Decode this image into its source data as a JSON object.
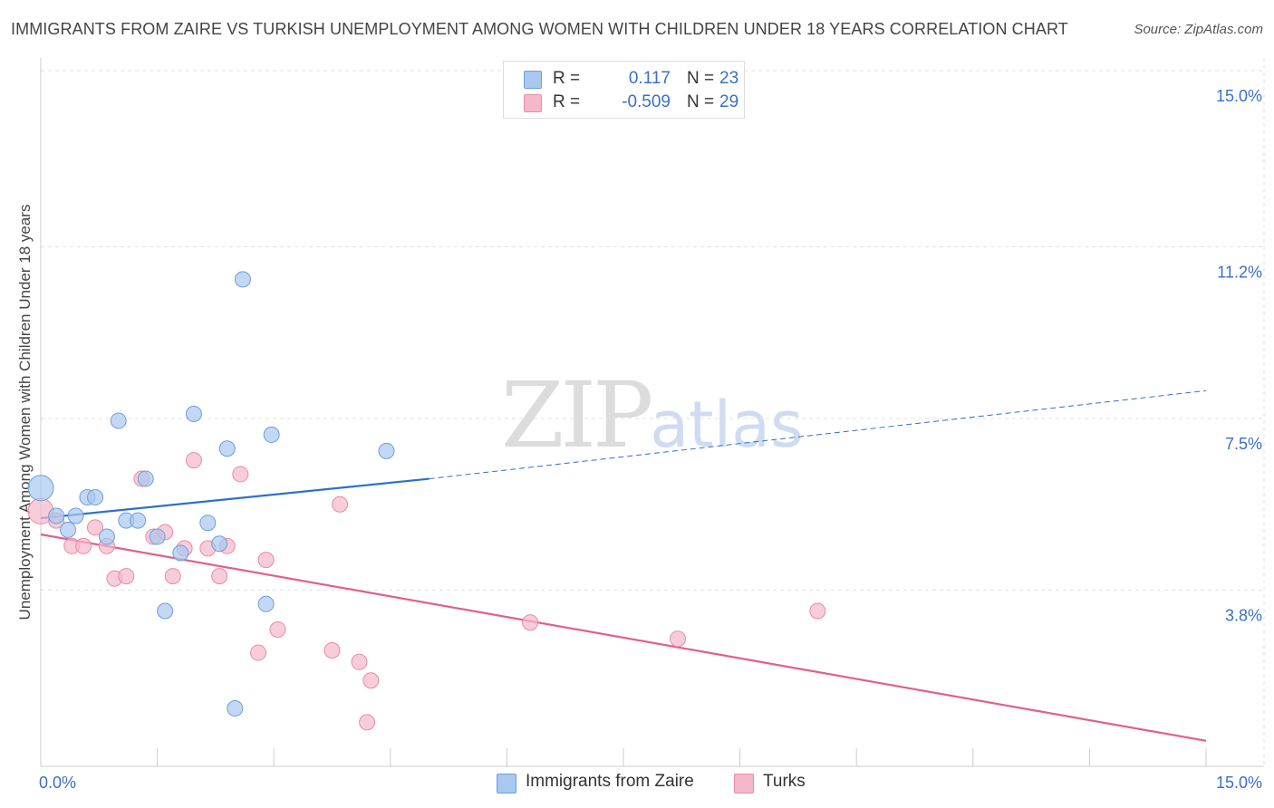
{
  "title": "IMMIGRANTS FROM ZAIRE VS TURKISH UNEMPLOYMENT AMONG WOMEN WITH CHILDREN UNDER 18 YEARS CORRELATION CHART",
  "source": "Source: ZipAtlas.com",
  "watermark": {
    "zip": "ZIP",
    "atlas": "atlas"
  },
  "legend": {
    "rows": [
      {
        "r_label": "R =",
        "r_value": "0.117",
        "n_label": "N =",
        "n_value": "23",
        "color": "#a9c8f0"
      },
      {
        "r_label": "R =",
        "r_value": "-0.509",
        "n_label": "N =",
        "n_value": "29",
        "color": "#f5b8cb"
      }
    ]
  },
  "bottom_legend": [
    {
      "label": "Immigrants from Zaire",
      "color": "#a9c8f0"
    },
    {
      "label": "Turks",
      "color": "#f5b8cb"
    }
  ],
  "chart_data": {
    "type": "scatter",
    "title": "IMMIGRANTS FROM ZAIRE VS TURKISH UNEMPLOYMENT AMONG WOMEN WITH CHILDREN UNDER 18 YEARS CORRELATION CHART",
    "xlabel": "",
    "ylabel": "Unemployment Among Women with Children Under 18 years",
    "xlim": [
      0,
      15
    ],
    "ylim": [
      0,
      15.5
    ],
    "x_tick_labels": [
      "0.0%",
      "15.0%"
    ],
    "y_ticks": [
      3.8,
      7.5,
      11.2,
      15.0
    ],
    "y_tick_labels": [
      "3.8%",
      "7.5%",
      "11.2%",
      "15.0%"
    ],
    "grid": true,
    "series": [
      {
        "name": "Immigrants from Zaire",
        "color": "#a9c8f0",
        "stroke": "#6f9ed9",
        "line_color": "#2f6fcc",
        "trend": {
          "x0": 0.0,
          "y0": 5.35,
          "x1": 5.0,
          "y1": 6.2,
          "dash_to_x": 15.0,
          "dash_to_y": 8.1
        },
        "points": [
          {
            "x": 0.0,
            "y": 6.0,
            "big": true
          },
          {
            "x": 0.2,
            "y": 5.4
          },
          {
            "x": 0.35,
            "y": 5.1
          },
          {
            "x": 0.45,
            "y": 5.4
          },
          {
            "x": 0.6,
            "y": 5.8
          },
          {
            "x": 0.7,
            "y": 5.8
          },
          {
            "x": 0.85,
            "y": 4.95
          },
          {
            "x": 1.0,
            "y": 7.45
          },
          {
            "x": 1.1,
            "y": 5.3
          },
          {
            "x": 1.25,
            "y": 5.3
          },
          {
            "x": 1.35,
            "y": 6.2
          },
          {
            "x": 1.5,
            "y": 4.95
          },
          {
            "x": 1.6,
            "y": 3.35
          },
          {
            "x": 1.8,
            "y": 4.6
          },
          {
            "x": 1.97,
            "y": 7.6
          },
          {
            "x": 2.15,
            "y": 5.25
          },
          {
            "x": 2.3,
            "y": 4.8
          },
          {
            "x": 2.4,
            "y": 6.85
          },
          {
            "x": 2.5,
            "y": 1.25
          },
          {
            "x": 2.6,
            "y": 10.5
          },
          {
            "x": 2.9,
            "y": 3.5
          },
          {
            "x": 2.97,
            "y": 7.15
          },
          {
            "x": 4.45,
            "y": 6.8
          }
        ]
      },
      {
        "name": "Turks",
        "color": "#f5b8cb",
        "stroke": "#e88aa6",
        "line_color": "#e0608a",
        "trend": {
          "x0": 0.0,
          "y0": 5.0,
          "x1": 15.0,
          "y1": 0.55
        },
        "points": [
          {
            "x": 0.0,
            "y": 5.5,
            "big": true
          },
          {
            "x": 0.2,
            "y": 5.3
          },
          {
            "x": 0.4,
            "y": 4.75
          },
          {
            "x": 0.55,
            "y": 4.75
          },
          {
            "x": 0.7,
            "y": 5.15
          },
          {
            "x": 0.85,
            "y": 4.75
          },
          {
            "x": 0.95,
            "y": 4.05
          },
          {
            "x": 1.1,
            "y": 4.1
          },
          {
            "x": 1.3,
            "y": 6.2
          },
          {
            "x": 1.45,
            "y": 4.95
          },
          {
            "x": 1.6,
            "y": 5.05
          },
          {
            "x": 1.7,
            "y": 4.1
          },
          {
            "x": 1.85,
            "y": 4.7
          },
          {
            "x": 1.97,
            "y": 6.6
          },
          {
            "x": 2.15,
            "y": 4.7
          },
          {
            "x": 2.3,
            "y": 4.1
          },
          {
            "x": 2.4,
            "y": 4.75
          },
          {
            "x": 2.57,
            "y": 6.3
          },
          {
            "x": 2.9,
            "y": 4.45
          },
          {
            "x": 2.8,
            "y": 2.45
          },
          {
            "x": 3.05,
            "y": 2.95
          },
          {
            "x": 3.75,
            "y": 2.5
          },
          {
            "x": 3.85,
            "y": 5.65
          },
          {
            "x": 4.1,
            "y": 2.25
          },
          {
            "x": 4.2,
            "y": 0.95
          },
          {
            "x": 4.25,
            "y": 1.85
          },
          {
            "x": 6.3,
            "y": 3.1
          },
          {
            "x": 8.2,
            "y": 2.75
          },
          {
            "x": 10.0,
            "y": 3.35
          }
        ]
      }
    ]
  }
}
